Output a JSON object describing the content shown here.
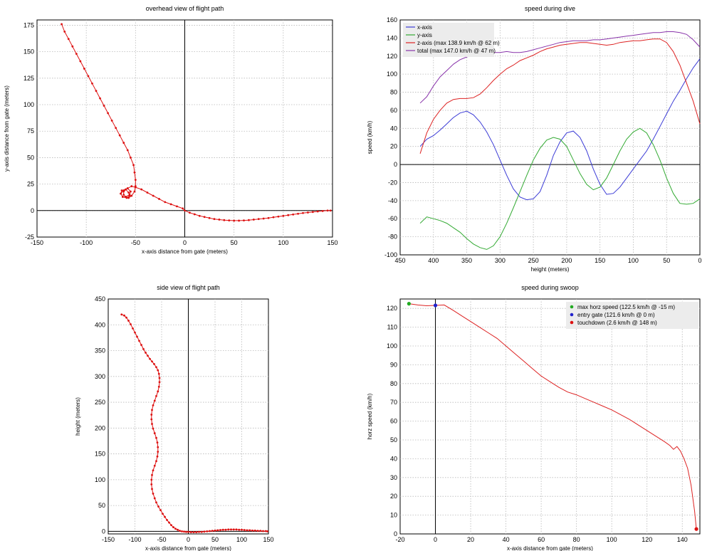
{
  "chart_data": [
    {
      "type": "line",
      "title": "overhead view of flight path",
      "xlabel": "x-axis distance from gate (meters)",
      "ylabel": "y-axis distance from gate (meters)",
      "xlim": [
        -150,
        150
      ],
      "ylim": [
        -25,
        180
      ],
      "xticks": [
        -150,
        -100,
        -50,
        0,
        50,
        100,
        150
      ],
      "yticks": [
        -25,
        0,
        25,
        50,
        75,
        100,
        125,
        150,
        175
      ],
      "grid": true,
      "color": "#dd1111",
      "markers": true,
      "series": [
        {
          "x": [
            -125,
            -122,
            -118,
            -114,
            -110,
            -106,
            -102,
            -98,
            -94,
            -90,
            -86,
            -82,
            -78,
            -74,
            -70,
            -66,
            -62,
            -58,
            -55,
            -52,
            -51,
            -50,
            -50,
            -51,
            -54,
            -57,
            -60,
            -62,
            -62,
            -58,
            -55,
            -56,
            -60,
            -63,
            -65,
            -64,
            -60,
            -57,
            -56,
            -59,
            -63,
            -65,
            -62,
            -58,
            -54,
            -50,
            -44,
            -38,
            -32,
            -26,
            -20,
            -14,
            -8,
            -2,
            0,
            5,
            10,
            15,
            20,
            25,
            30,
            35,
            40,
            45,
            50,
            55,
            60,
            65,
            70,
            75,
            80,
            85,
            90,
            95,
            100,
            105,
            110,
            115,
            120,
            125,
            130,
            135,
            140,
            145,
            148
          ],
          "y": [
            176,
            169,
            162,
            155,
            148,
            141,
            134,
            127,
            120,
            113,
            106,
            99,
            92,
            85,
            78,
            71,
            64,
            57,
            50,
            43,
            36,
            29,
            23,
            18,
            14,
            12,
            13,
            15,
            18,
            21,
            18,
            15,
            13,
            13,
            16,
            19,
            20,
            17,
            14,
            12,
            13,
            16,
            19,
            21,
            23,
            22,
            20,
            17,
            14,
            11,
            8,
            6,
            4,
            2,
            0,
            -2,
            -3.5,
            -5,
            -6,
            -7,
            -8,
            -8.5,
            -9,
            -9.3,
            -9.5,
            -9.5,
            -9.3,
            -9,
            -8.5,
            -8,
            -7.5,
            -7,
            -6.3,
            -5.7,
            -5,
            -4.3,
            -3.7,
            -3,
            -2.3,
            -1.8,
            -1.3,
            -0.8,
            -0.4,
            0,
            0
          ]
        }
      ]
    },
    {
      "type": "line",
      "title": "speed during dive",
      "xlabel": "height (meters)",
      "ylabel": "speed (km/h)",
      "xlim": [
        450,
        0
      ],
      "ylim": [
        -100,
        160
      ],
      "xticks": [
        450,
        400,
        350,
        300,
        250,
        200,
        150,
        100,
        50,
        0
      ],
      "yticks": [
        -100,
        -80,
        -60,
        -40,
        -20,
        0,
        20,
        40,
        60,
        80,
        100,
        120,
        140,
        160
      ],
      "grid": true,
      "legend_position": "top-left",
      "series": [
        {
          "name": "x-axis",
          "color": "#3b3bd6",
          "x": [
            420,
            410,
            400,
            390,
            380,
            370,
            360,
            350,
            340,
            330,
            320,
            310,
            300,
            290,
            280,
            270,
            260,
            250,
            240,
            230,
            220,
            210,
            200,
            190,
            180,
            170,
            160,
            150,
            140,
            130,
            120,
            110,
            100,
            90,
            80,
            70,
            60,
            50,
            40,
            30,
            20,
            10,
            0
          ],
          "y": [
            20,
            28,
            32,
            38,
            45,
            52,
            57,
            59,
            55,
            47,
            36,
            22,
            5,
            -12,
            -27,
            -36,
            -39,
            -38,
            -30,
            -12,
            10,
            25,
            35,
            37,
            30,
            15,
            -5,
            -22,
            -33,
            -32,
            -25,
            -15,
            -5,
            5,
            15,
            28,
            42,
            56,
            70,
            82,
            95,
            107,
            117
          ]
        },
        {
          "name": "y-axis",
          "color": "#33aa33",
          "x": [
            420,
            410,
            400,
            390,
            380,
            370,
            360,
            350,
            340,
            330,
            320,
            310,
            300,
            290,
            280,
            270,
            260,
            250,
            240,
            230,
            220,
            210,
            200,
            190,
            180,
            170,
            160,
            150,
            140,
            130,
            120,
            110,
            100,
            90,
            80,
            70,
            60,
            50,
            40,
            30,
            20,
            10,
            0
          ],
          "y": [
            -65,
            -58,
            -60,
            -62,
            -65,
            -70,
            -75,
            -82,
            -88,
            -92,
            -94,
            -90,
            -80,
            -65,
            -48,
            -30,
            -12,
            5,
            18,
            27,
            30,
            28,
            20,
            5,
            -10,
            -22,
            -28,
            -25,
            -15,
            0,
            15,
            28,
            36,
            40,
            35,
            22,
            5,
            -15,
            -32,
            -43,
            -44,
            -43,
            -38
          ]
        },
        {
          "name": "z-axis (max 138.9 km/h @ 62 m)",
          "color": "#dd2222",
          "x": [
            420,
            410,
            400,
            390,
            380,
            370,
            360,
            350,
            340,
            330,
            320,
            310,
            300,
            290,
            280,
            270,
            260,
            250,
            240,
            230,
            220,
            210,
            200,
            190,
            180,
            170,
            160,
            150,
            140,
            130,
            120,
            110,
            100,
            90,
            80,
            70,
            60,
            50,
            40,
            30,
            20,
            10,
            0
          ],
          "y": [
            12,
            35,
            50,
            60,
            68,
            72,
            73,
            73,
            74,
            78,
            85,
            93,
            100,
            106,
            110,
            115,
            118,
            121,
            125,
            128,
            130,
            132,
            133,
            134,
            135,
            135,
            134,
            133,
            132,
            133,
            135,
            136,
            137,
            137,
            138,
            139,
            139,
            135,
            125,
            110,
            90,
            70,
            45
          ]
        },
        {
          "name": "total (max 147.0 km/h @ 47 m)",
          "color": "#8833aa",
          "x": [
            420,
            410,
            400,
            390,
            380,
            370,
            360,
            350,
            340,
            330,
            320,
            310,
            300,
            290,
            280,
            270,
            260,
            250,
            240,
            230,
            220,
            210,
            200,
            190,
            180,
            170,
            160,
            150,
            140,
            130,
            120,
            110,
            100,
            90,
            80,
            70,
            60,
            50,
            40,
            30,
            20,
            10,
            0
          ],
          "y": [
            68,
            75,
            87,
            97,
            104,
            111,
            116,
            119,
            121,
            122,
            123,
            124,
            124,
            125,
            124,
            124,
            125,
            127,
            129,
            131,
            133,
            135,
            136,
            137,
            137,
            137,
            138,
            138,
            139,
            140,
            141,
            142,
            143,
            144,
            145,
            146,
            146,
            147,
            147,
            146,
            144,
            138,
            130
          ]
        }
      ]
    },
    {
      "type": "line",
      "title": "side view of flight path",
      "xlabel": "x-axis distance from gate (meters)",
      "ylabel": "height (meters)",
      "xlim": [
        -150,
        150
      ],
      "ylim": [
        -5,
        450
      ],
      "xticks": [
        -150,
        -100,
        -50,
        0,
        50,
        100,
        150
      ],
      "yticks": [
        0,
        50,
        100,
        150,
        200,
        250,
        300,
        350,
        400,
        450
      ],
      "grid": true,
      "color": "#dd1111",
      "markers": true,
      "series": [
        {
          "x": [
            -125,
            -120,
            -116,
            -112,
            -108,
            -104,
            -100,
            -96,
            -92,
            -88,
            -84,
            -80,
            -76,
            -72,
            -68,
            -64,
            -60,
            -57,
            -55,
            -54,
            -54,
            -55,
            -57,
            -60,
            -63,
            -66,
            -68,
            -69,
            -69,
            -68,
            -66,
            -63,
            -60,
            -58,
            -57,
            -57,
            -58,
            -60,
            -63,
            -66,
            -68,
            -69,
            -69,
            -68,
            -66,
            -63,
            -60,
            -56,
            -52,
            -48,
            -44,
            -40,
            -36,
            -32,
            -28,
            -24,
            -20,
            -16,
            -12,
            -8,
            -4,
            0,
            5,
            10,
            15,
            20,
            25,
            30,
            35,
            40,
            45,
            50,
            55,
            60,
            65,
            70,
            75,
            80,
            85,
            90,
            95,
            100,
            105,
            110,
            115,
            120,
            125,
            130,
            135,
            140,
            145,
            148
          ],
          "y": [
            420,
            418,
            414,
            408,
            401,
            393,
            385,
            377,
            369,
            361,
            353,
            346,
            340,
            334,
            329,
            324,
            318,
            312,
            305,
            297,
            289,
            280,
            271,
            262,
            253,
            244,
            235,
            226,
            217,
            208,
            199,
            190,
            181,
            172,
            163,
            154,
            145,
            136,
            127,
            118,
            109,
            100,
            91,
            82,
            73,
            64,
            56,
            48,
            41,
            34,
            28,
            22,
            17,
            12,
            8,
            5,
            3,
            1,
            0,
            -0.5,
            -1,
            -1,
            -1.5,
            -1.5,
            -1.5,
            -1,
            -1,
            -0.5,
            0,
            0.5,
            1,
            1.5,
            2,
            2.5,
            3,
            3,
            3.5,
            3.5,
            3.5,
            3.5,
            3,
            3,
            2.5,
            2,
            2,
            1.5,
            1.5,
            1,
            1,
            0.5,
            0.5,
            0
          ]
        }
      ]
    },
    {
      "type": "line",
      "title": "speed during swoop",
      "xlabel": "x-axis distance from gate (meters)",
      "ylabel": "horz speed (km/h)",
      "xlim": [
        -20,
        150
      ],
      "ylim": [
        0,
        125
      ],
      "xticks": [
        -20,
        0,
        20,
        40,
        60,
        80,
        100,
        120,
        140
      ],
      "yticks": [
        0,
        10,
        20,
        30,
        40,
        50,
        60,
        70,
        80,
        90,
        100,
        110,
        120
      ],
      "grid": true,
      "legend_position": "top-right",
      "series": [
        {
          "color": "#dd2222",
          "x": [
            -15,
            -10,
            -5,
            0,
            5,
            10,
            15,
            20,
            25,
            30,
            35,
            40,
            45,
            50,
            55,
            60,
            65,
            70,
            75,
            80,
            85,
            90,
            95,
            100,
            105,
            110,
            115,
            120,
            125,
            130,
            133,
            135,
            137,
            139,
            141,
            143,
            145,
            147,
            148
          ],
          "y": [
            122.5,
            121.8,
            121.4,
            121.6,
            121.8,
            119,
            116,
            113,
            110,
            107,
            104,
            100,
            96,
            92,
            88,
            84,
            81,
            78,
            75.5,
            74,
            72,
            70,
            68,
            66,
            63.5,
            61,
            58,
            55,
            52,
            49,
            47,
            45,
            46.5,
            44,
            40,
            35,
            26,
            12,
            2.6
          ]
        }
      ],
      "points": [
        {
          "name": "max horz speed (122.5 km/h @ -15 m)",
          "color": "#22aa22",
          "x": -15,
          "y": 122.5
        },
        {
          "name": "entry gate (121.6 km/h @ 0 m)",
          "color": "#2222cc",
          "x": 0,
          "y": 121.6
        },
        {
          "name": "touchdown (2.6 km/h @ 148 m)",
          "color": "#dd1111",
          "x": 148,
          "y": 2.6
        }
      ]
    }
  ]
}
